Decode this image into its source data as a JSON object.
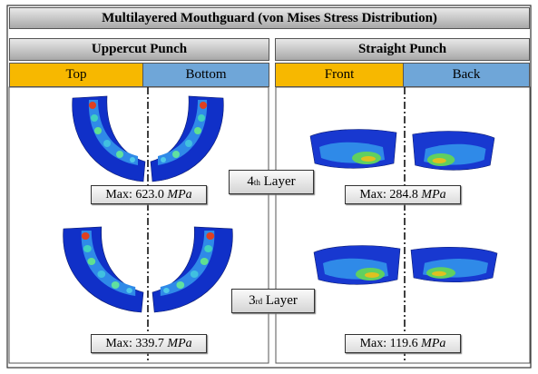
{
  "header": {
    "title": "Multilayered Mouthguard (von Mises Stress Distribution)"
  },
  "columns": [
    {
      "title": "Uppercut Punch",
      "views": [
        "Top",
        "Bottom"
      ]
    },
    {
      "title": "Straight Punch",
      "views": [
        "Front",
        "Back"
      ]
    }
  ],
  "layers": [
    {
      "number": "4",
      "suffix": "th",
      "word": "Layer",
      "max": [
        {
          "prefix": "Max:",
          "value": "623.0",
          "unit": "MPa"
        },
        {
          "prefix": "Max:",
          "value": "284.8",
          "unit": "MPa"
        }
      ]
    },
    {
      "number": "3",
      "suffix": "rd",
      "word": "Layer",
      "max": [
        {
          "prefix": "Max:",
          "value": "339.7",
          "unit": "MPa"
        },
        {
          "prefix": "Max:",
          "value": "119.6",
          "unit": "MPa"
        }
      ]
    }
  ]
}
